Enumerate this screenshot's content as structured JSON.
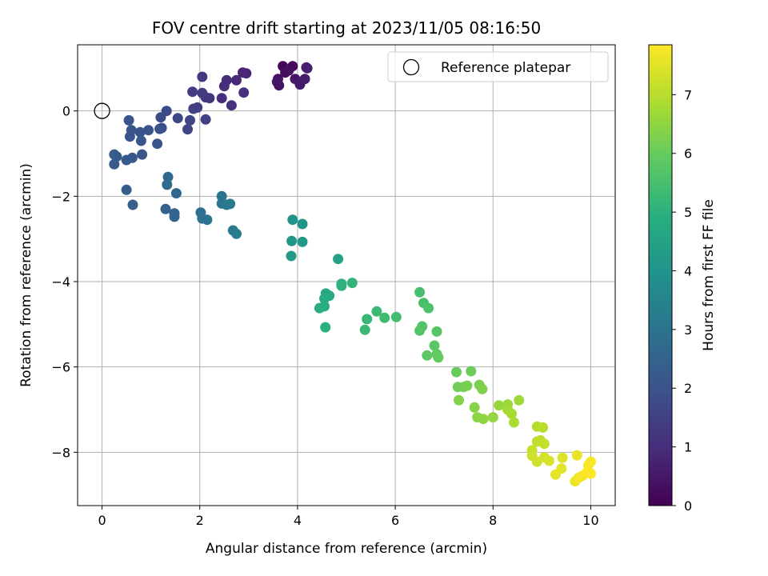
{
  "chart_data": {
    "type": "scatter",
    "title": "FOV centre drift starting at 2023/11/05 08:16:50",
    "xlabel": "Angular distance from reference (arcmin)",
    "ylabel": "Rotation from reference (arcmin)",
    "xlim": [
      -0.5,
      10.5
    ],
    "ylim": [
      -9.25,
      1.55
    ],
    "xticks": [
      0,
      2,
      4,
      6,
      8,
      10
    ],
    "yticks": [
      0,
      -2,
      -4,
      -6,
      -8
    ],
    "grid": true,
    "legend": {
      "placement": "top-right",
      "entries": [
        "Reference platepar"
      ]
    },
    "colorbar": {
      "label": "Hours from first FF file",
      "range": [
        0,
        7.85
      ],
      "ticks": [
        0,
        1,
        2,
        3,
        4,
        5,
        6,
        7
      ],
      "colormap": "viridis"
    },
    "reference_point": {
      "x": 0,
      "y": 0,
      "marker": "open-circle"
    },
    "series": [
      {
        "points": [
          {
            "x": 3.7,
            "y": 1.05,
            "h": 0.1
          },
          {
            "x": 3.9,
            "y": 1.05,
            "h": 0.2
          },
          {
            "x": 3.75,
            "y": 0.9,
            "h": 0.25
          },
          {
            "x": 3.82,
            "y": 0.95,
            "h": 0.3
          },
          {
            "x": 3.6,
            "y": 0.75,
            "h": 0.35
          },
          {
            "x": 3.62,
            "y": 0.6,
            "h": 0.4
          },
          {
            "x": 3.58,
            "y": 0.68,
            "h": 0.45
          },
          {
            "x": 3.95,
            "y": 0.75,
            "h": 0.5
          },
          {
            "x": 4.05,
            "y": 0.62,
            "h": 0.55
          },
          {
            "x": 4.15,
            "y": 0.75,
            "h": 0.6
          },
          {
            "x": 4.18,
            "y": 1.02,
            "h": 0.65
          },
          {
            "x": 4.2,
            "y": 1.0,
            "h": 0.7
          },
          {
            "x": 2.95,
            "y": 0.88,
            "h": 0.8
          },
          {
            "x": 2.88,
            "y": 0.9,
            "h": 0.85
          },
          {
            "x": 2.75,
            "y": 0.72,
            "h": 0.9
          },
          {
            "x": 2.55,
            "y": 0.72,
            "h": 0.95
          },
          {
            "x": 2.5,
            "y": 0.58,
            "h": 1.0
          },
          {
            "x": 2.45,
            "y": 0.3,
            "h": 1.05
          },
          {
            "x": 2.9,
            "y": 0.43,
            "h": 1.1
          },
          {
            "x": 2.65,
            "y": 0.13,
            "h": 1.15
          },
          {
            "x": 2.2,
            "y": 0.3,
            "h": 1.2
          },
          {
            "x": 2.12,
            "y": 0.32,
            "h": 1.25
          },
          {
            "x": 2.05,
            "y": 0.8,
            "h": 1.3
          },
          {
            "x": 2.05,
            "y": 0.42,
            "h": 1.35
          },
          {
            "x": 1.85,
            "y": 0.45,
            "h": 1.4
          },
          {
            "x": 1.95,
            "y": 0.08,
            "h": 1.45
          },
          {
            "x": 1.87,
            "y": 0.05,
            "h": 1.5
          },
          {
            "x": 2.12,
            "y": -0.2,
            "h": 1.55
          },
          {
            "x": 1.8,
            "y": -0.22,
            "h": 1.6
          },
          {
            "x": 1.75,
            "y": -0.43,
            "h": 1.65
          },
          {
            "x": 1.55,
            "y": -0.17,
            "h": 1.7
          },
          {
            "x": 1.32,
            "y": 0.0,
            "h": 1.75
          },
          {
            "x": 1.2,
            "y": -0.15,
            "h": 1.8
          },
          {
            "x": 1.22,
            "y": -0.4,
            "h": 1.85
          },
          {
            "x": 1.18,
            "y": -0.42,
            "h": 1.9
          },
          {
            "x": 0.95,
            "y": -0.45,
            "h": 1.95
          },
          {
            "x": 0.78,
            "y": -0.5,
            "h": 2.0
          },
          {
            "x": 0.55,
            "y": -0.22,
            "h": 2.0
          },
          {
            "x": 0.6,
            "y": -0.45,
            "h": 2.05
          },
          {
            "x": 0.57,
            "y": -0.6,
            "h": 2.05
          },
          {
            "x": 0.8,
            "y": -0.7,
            "h": 2.1
          },
          {
            "x": 1.13,
            "y": -0.77,
            "h": 2.1
          },
          {
            "x": 0.82,
            "y": -1.02,
            "h": 2.15
          },
          {
            "x": 0.62,
            "y": -1.1,
            "h": 2.15
          },
          {
            "x": 0.5,
            "y": -1.15,
            "h": 2.2
          },
          {
            "x": 0.3,
            "y": -1.07,
            "h": 2.2
          },
          {
            "x": 0.25,
            "y": -1.02,
            "h": 2.25
          },
          {
            "x": 0.25,
            "y": -1.25,
            "h": 2.25
          },
          {
            "x": 0.5,
            "y": -1.85,
            "h": 2.3
          },
          {
            "x": 0.63,
            "y": -2.2,
            "h": 2.35
          },
          {
            "x": 1.3,
            "y": -2.3,
            "h": 2.45
          },
          {
            "x": 1.48,
            "y": -2.4,
            "h": 2.5
          },
          {
            "x": 1.48,
            "y": -2.48,
            "h": 2.55
          },
          {
            "x": 1.52,
            "y": -1.93,
            "h": 2.6
          },
          {
            "x": 1.35,
            "y": -1.55,
            "h": 2.65
          },
          {
            "x": 1.33,
            "y": -1.73,
            "h": 2.7
          },
          {
            "x": 2.02,
            "y": -2.38,
            "h": 2.85
          },
          {
            "x": 2.05,
            "y": -2.52,
            "h": 2.9
          },
          {
            "x": 2.15,
            "y": -2.55,
            "h": 2.95
          },
          {
            "x": 2.45,
            "y": -2.0,
            "h": 3.0
          },
          {
            "x": 2.45,
            "y": -2.17,
            "h": 3.05
          },
          {
            "x": 2.55,
            "y": -2.2,
            "h": 3.1
          },
          {
            "x": 2.62,
            "y": -2.18,
            "h": 3.15
          },
          {
            "x": 2.68,
            "y": -2.8,
            "h": 3.2
          },
          {
            "x": 2.75,
            "y": -2.88,
            "h": 3.25
          },
          {
            "x": 3.9,
            "y": -2.55,
            "h": 4.0
          },
          {
            "x": 4.1,
            "y": -2.65,
            "h": 4.05
          },
          {
            "x": 3.88,
            "y": -3.05,
            "h": 4.1
          },
          {
            "x": 4.1,
            "y": -3.07,
            "h": 4.15
          },
          {
            "x": 3.87,
            "y": -3.4,
            "h": 4.2
          },
          {
            "x": 4.83,
            "y": -3.47,
            "h": 4.5
          },
          {
            "x": 4.58,
            "y": -4.28,
            "h": 4.7
          },
          {
            "x": 4.65,
            "y": -4.33,
            "h": 4.75
          },
          {
            "x": 4.55,
            "y": -4.4,
            "h": 4.8
          },
          {
            "x": 4.55,
            "y": -4.58,
            "h": 4.85
          },
          {
            "x": 4.45,
            "y": -4.62,
            "h": 4.9
          },
          {
            "x": 4.57,
            "y": -5.07,
            "h": 4.95
          },
          {
            "x": 4.9,
            "y": -4.05,
            "h": 5.0
          },
          {
            "x": 4.9,
            "y": -4.1,
            "h": 5.05
          },
          {
            "x": 5.12,
            "y": -4.03,
            "h": 5.1
          },
          {
            "x": 5.42,
            "y": -4.88,
            "h": 5.2
          },
          {
            "x": 5.38,
            "y": -5.13,
            "h": 5.25
          },
          {
            "x": 5.62,
            "y": -4.7,
            "h": 5.3
          },
          {
            "x": 5.78,
            "y": -4.85,
            "h": 5.35
          },
          {
            "x": 6.02,
            "y": -4.83,
            "h": 5.4
          },
          {
            "x": 6.5,
            "y": -4.25,
            "h": 5.5
          },
          {
            "x": 6.58,
            "y": -4.5,
            "h": 5.55
          },
          {
            "x": 6.68,
            "y": -4.62,
            "h": 5.6
          },
          {
            "x": 6.55,
            "y": -5.05,
            "h": 5.65
          },
          {
            "x": 6.5,
            "y": -5.15,
            "h": 5.7
          },
          {
            "x": 6.85,
            "y": -5.17,
            "h": 5.75
          },
          {
            "x": 6.8,
            "y": -5.5,
            "h": 5.8
          },
          {
            "x": 6.65,
            "y": -5.73,
            "h": 5.85
          },
          {
            "x": 6.85,
            "y": -5.7,
            "h": 5.9
          },
          {
            "x": 6.88,
            "y": -5.78,
            "h": 5.95
          },
          {
            "x": 7.25,
            "y": -6.12,
            "h": 6.0
          },
          {
            "x": 7.55,
            "y": -6.1,
            "h": 6.05
          },
          {
            "x": 7.28,
            "y": -6.47,
            "h": 6.1
          },
          {
            "x": 7.4,
            "y": -6.47,
            "h": 6.15
          },
          {
            "x": 7.47,
            "y": -6.44,
            "h": 6.2
          },
          {
            "x": 7.72,
            "y": -6.42,
            "h": 6.25
          },
          {
            "x": 7.78,
            "y": -6.52,
            "h": 6.3
          },
          {
            "x": 7.3,
            "y": -6.78,
            "h": 6.35
          },
          {
            "x": 7.62,
            "y": -6.95,
            "h": 6.4
          },
          {
            "x": 7.68,
            "y": -7.18,
            "h": 6.45
          },
          {
            "x": 7.8,
            "y": -7.22,
            "h": 6.5
          },
          {
            "x": 8.0,
            "y": -7.18,
            "h": 6.55
          },
          {
            "x": 8.12,
            "y": -6.9,
            "h": 6.6
          },
          {
            "x": 8.3,
            "y": -6.88,
            "h": 6.65
          },
          {
            "x": 8.53,
            "y": -6.78,
            "h": 6.7
          },
          {
            "x": 8.3,
            "y": -7.0,
            "h": 6.75
          },
          {
            "x": 8.38,
            "y": -7.1,
            "h": 6.8
          },
          {
            "x": 8.43,
            "y": -7.3,
            "h": 6.85
          },
          {
            "x": 8.9,
            "y": -7.4,
            "h": 6.95
          },
          {
            "x": 9.02,
            "y": -7.42,
            "h": 7.0
          },
          {
            "x": 8.9,
            "y": -7.75,
            "h": 7.05
          },
          {
            "x": 8.97,
            "y": -7.72,
            "h": 7.1
          },
          {
            "x": 9.05,
            "y": -7.8,
            "h": 7.15
          },
          {
            "x": 8.8,
            "y": -7.95,
            "h": 7.2
          },
          {
            "x": 8.8,
            "y": -8.08,
            "h": 7.25
          },
          {
            "x": 8.9,
            "y": -8.22,
            "h": 7.3
          },
          {
            "x": 9.05,
            "y": -8.12,
            "h": 7.35
          },
          {
            "x": 9.15,
            "y": -8.2,
            "h": 7.4
          },
          {
            "x": 9.42,
            "y": -8.13,
            "h": 7.45
          },
          {
            "x": 9.4,
            "y": -8.38,
            "h": 7.5
          },
          {
            "x": 9.28,
            "y": -8.52,
            "h": 7.55
          },
          {
            "x": 9.72,
            "y": -8.07,
            "h": 7.6
          },
          {
            "x": 9.68,
            "y": -8.68,
            "h": 7.65
          },
          {
            "x": 9.75,
            "y": -8.6,
            "h": 7.7
          },
          {
            "x": 9.83,
            "y": -8.55,
            "h": 7.75
          },
          {
            "x": 9.95,
            "y": -8.3,
            "h": 7.8
          },
          {
            "x": 10.0,
            "y": -8.22,
            "h": 7.8
          },
          {
            "x": 9.92,
            "y": -8.47,
            "h": 7.85
          },
          {
            "x": 10.0,
            "y": -8.5,
            "h": 7.85
          }
        ]
      }
    ]
  }
}
